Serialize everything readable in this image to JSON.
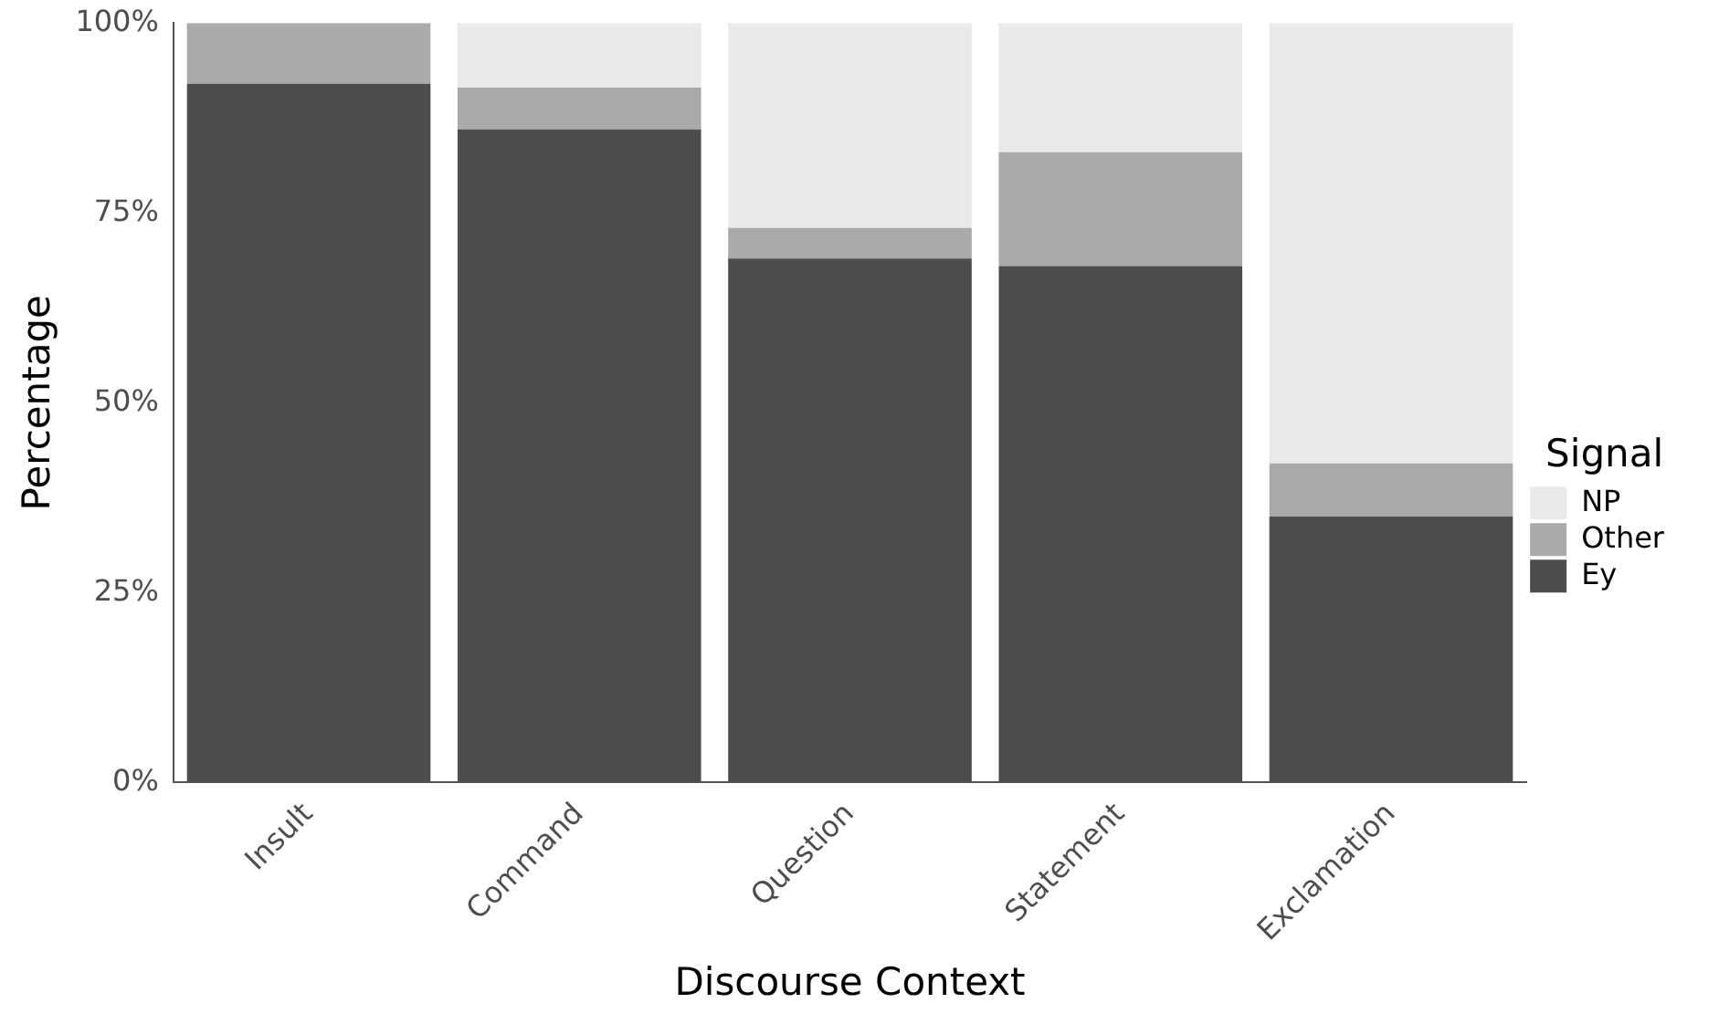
{
  "chart_data": {
    "type": "bar",
    "stacked": true,
    "xlabel": "Discourse Context",
    "ylabel": "Percentage",
    "legend_title": "Signal",
    "legend": "right",
    "categories": [
      "Insult",
      "Command",
      "Question",
      "Statement",
      "Exclamation"
    ],
    "series": [
      {
        "name": "Ey",
        "color": "#4d4d4d",
        "values": [
          92,
          86,
          69,
          68,
          35
        ]
      },
      {
        "name": "Other",
        "color": "#aaaaaa",
        "values": [
          8,
          5.5,
          4,
          15,
          7
        ]
      },
      {
        "name": "NP",
        "color": "#e9e9e9",
        "values": [
          0,
          8.5,
          27,
          17,
          58
        ]
      }
    ],
    "ylim": [
      0,
      100
    ],
    "yticks": [
      {
        "value": 0,
        "label": "0%"
      },
      {
        "value": 25,
        "label": "25%"
      },
      {
        "value": 50,
        "label": "50%"
      },
      {
        "value": 75,
        "label": "75%"
      },
      {
        "value": 100,
        "label": "100%"
      }
    ],
    "grid": false
  }
}
